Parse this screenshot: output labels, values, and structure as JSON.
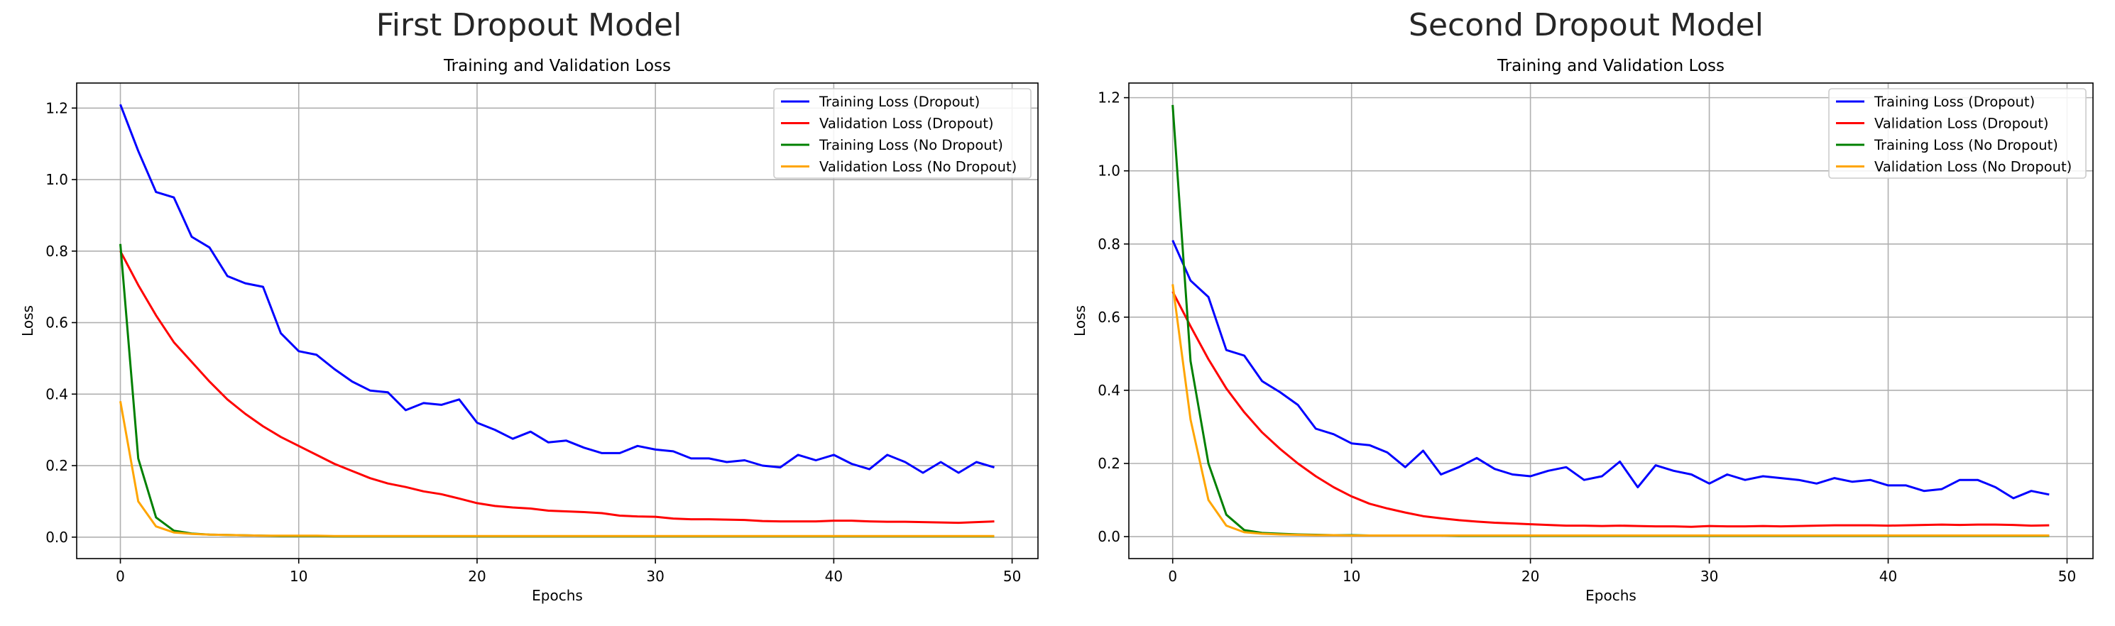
{
  "figure": {
    "titles": [
      "First Dropout Model",
      "Second Dropout Model"
    ]
  },
  "chart_data": [
    {
      "type": "line",
      "title": "Training and Validation Loss",
      "xlabel": "Epochs",
      "ylabel": "Loss",
      "xlim": [
        -2.45,
        51.45
      ],
      "ylim": [
        -0.06,
        1.27
      ],
      "xticks": [
        0,
        10,
        20,
        30,
        40,
        50
      ],
      "yticks": [
        0.0,
        0.2,
        0.4,
        0.6,
        0.8,
        1.0,
        1.2
      ],
      "ytick_labels": [
        "0.0",
        "0.2",
        "0.4",
        "0.6",
        "0.8",
        "1.0",
        "1.2"
      ],
      "grid": true,
      "legend_position": "top-right",
      "x": [
        0,
        1,
        2,
        3,
        4,
        5,
        6,
        7,
        8,
        9,
        10,
        11,
        12,
        13,
        14,
        15,
        16,
        17,
        18,
        19,
        20,
        21,
        22,
        23,
        24,
        25,
        26,
        27,
        28,
        29,
        30,
        31,
        32,
        33,
        34,
        35,
        36,
        37,
        38,
        39,
        40,
        41,
        42,
        43,
        44,
        45,
        46,
        47,
        48,
        49
      ],
      "series": [
        {
          "name": "Training Loss (Dropout)",
          "color": "#0000ff",
          "values": [
            1.21,
            1.08,
            0.965,
            0.95,
            0.84,
            0.81,
            0.73,
            0.71,
            0.7,
            0.57,
            0.52,
            0.51,
            0.47,
            0.435,
            0.41,
            0.405,
            0.355,
            0.375,
            0.37,
            0.385,
            0.32,
            0.3,
            0.275,
            0.295,
            0.265,
            0.27,
            0.25,
            0.235,
            0.235,
            0.255,
            0.245,
            0.24,
            0.22,
            0.22,
            0.21,
            0.215,
            0.2,
            0.195,
            0.23,
            0.215,
            0.23,
            0.205,
            0.19,
            0.23,
            0.21,
            0.18,
            0.21,
            0.18,
            0.21,
            0.195
          ]
        },
        {
          "name": "Validation Loss (Dropout)",
          "color": "#ff0000",
          "values": [
            0.8,
            0.705,
            0.62,
            0.545,
            0.49,
            0.435,
            0.385,
            0.345,
            0.31,
            0.28,
            0.255,
            0.23,
            0.205,
            0.185,
            0.165,
            0.15,
            0.14,
            0.128,
            0.12,
            0.108,
            0.095,
            0.087,
            0.083,
            0.08,
            0.074,
            0.072,
            0.07,
            0.067,
            0.06,
            0.058,
            0.057,
            0.052,
            0.05,
            0.05,
            0.049,
            0.048,
            0.045,
            0.044,
            0.044,
            0.044,
            0.046,
            0.046,
            0.044,
            0.043,
            0.043,
            0.042,
            0.041,
            0.04,
            0.042,
            0.044
          ]
        },
        {
          "name": "Training Loss (No Dropout)",
          "color": "#008000",
          "values": [
            0.82,
            0.22,
            0.055,
            0.018,
            0.01,
            0.007,
            0.006,
            0.005,
            0.004,
            0.003,
            0.003,
            0.003,
            0.002,
            0.002,
            0.002,
            0.002,
            0.002,
            0.002,
            0.002,
            0.002,
            0.002,
            0.002,
            0.002,
            0.002,
            0.002,
            0.002,
            0.002,
            0.002,
            0.002,
            0.002,
            0.002,
            0.002,
            0.002,
            0.002,
            0.002,
            0.002,
            0.002,
            0.002,
            0.002,
            0.002,
            0.002,
            0.002,
            0.002,
            0.002,
            0.002,
            0.002,
            0.002,
            0.002,
            0.002,
            0.002
          ]
        },
        {
          "name": "Validation Loss (No Dropout)",
          "color": "#ffa500",
          "values": [
            0.38,
            0.1,
            0.03,
            0.013,
            0.009,
            0.007,
            0.006,
            0.005,
            0.004,
            0.004,
            0.004,
            0.004,
            0.003,
            0.003,
            0.003,
            0.003,
            0.003,
            0.003,
            0.003,
            0.003,
            0.003,
            0.003,
            0.003,
            0.003,
            0.003,
            0.003,
            0.003,
            0.003,
            0.003,
            0.003,
            0.003,
            0.003,
            0.003,
            0.003,
            0.003,
            0.003,
            0.003,
            0.003,
            0.003,
            0.003,
            0.003,
            0.003,
            0.003,
            0.003,
            0.003,
            0.003,
            0.003,
            0.003,
            0.003,
            0.003
          ]
        }
      ]
    },
    {
      "type": "line",
      "title": "Training and Validation Loss",
      "xlabel": "Epochs",
      "ylabel": "Loss",
      "xlim": [
        -2.45,
        51.45
      ],
      "ylim": [
        -0.06,
        1.24
      ],
      "xticks": [
        0,
        10,
        20,
        30,
        40,
        50
      ],
      "yticks": [
        0.0,
        0.2,
        0.4,
        0.6,
        0.8,
        1.0,
        1.2
      ],
      "ytick_labels": [
        "0.0",
        "0.2",
        "0.4",
        "0.6",
        "0.8",
        "1.0",
        "1.2"
      ],
      "grid": true,
      "legend_position": "top-right",
      "x": [
        0,
        1,
        2,
        3,
        4,
        5,
        6,
        7,
        8,
        9,
        10,
        11,
        12,
        13,
        14,
        15,
        16,
        17,
        18,
        19,
        20,
        21,
        22,
        23,
        24,
        25,
        26,
        27,
        28,
        29,
        30,
        31,
        32,
        33,
        34,
        35,
        36,
        37,
        38,
        39,
        40,
        41,
        42,
        43,
        44,
        45,
        46,
        47,
        48,
        49
      ],
      "series": [
        {
          "name": "Training Loss (Dropout)",
          "color": "#0000ff",
          "values": [
            0.81,
            0.7,
            0.655,
            0.51,
            0.495,
            0.425,
            0.395,
            0.36,
            0.295,
            0.28,
            0.255,
            0.25,
            0.23,
            0.19,
            0.235,
            0.17,
            0.19,
            0.215,
            0.185,
            0.17,
            0.165,
            0.18,
            0.19,
            0.155,
            0.165,
            0.205,
            0.135,
            0.195,
            0.18,
            0.17,
            0.145,
            0.17,
            0.155,
            0.165,
            0.16,
            0.155,
            0.145,
            0.16,
            0.15,
            0.155,
            0.14,
            0.14,
            0.125,
            0.13,
            0.155,
            0.155,
            0.135,
            0.105,
            0.125,
            0.115
          ]
        },
        {
          "name": "Validation Loss (Dropout)",
          "color": "#ff0000",
          "values": [
            0.67,
            0.575,
            0.485,
            0.405,
            0.34,
            0.285,
            0.24,
            0.2,
            0.165,
            0.135,
            0.11,
            0.09,
            0.077,
            0.066,
            0.056,
            0.05,
            0.045,
            0.041,
            0.038,
            0.036,
            0.034,
            0.032,
            0.03,
            0.03,
            0.029,
            0.03,
            0.029,
            0.028,
            0.028,
            0.027,
            0.029,
            0.028,
            0.028,
            0.029,
            0.028,
            0.029,
            0.03,
            0.031,
            0.031,
            0.031,
            0.03,
            0.031,
            0.032,
            0.033,
            0.032,
            0.033,
            0.033,
            0.032,
            0.03,
            0.031
          ]
        },
        {
          "name": "Training Loss (No Dropout)",
          "color": "#008000",
          "values": [
            1.18,
            0.48,
            0.2,
            0.06,
            0.018,
            0.01,
            0.008,
            0.006,
            0.005,
            0.004,
            0.004,
            0.003,
            0.003,
            0.003,
            0.003,
            0.003,
            0.002,
            0.002,
            0.002,
            0.002,
            0.002,
            0.002,
            0.002,
            0.002,
            0.002,
            0.002,
            0.002,
            0.002,
            0.002,
            0.002,
            0.002,
            0.002,
            0.002,
            0.002,
            0.002,
            0.002,
            0.002,
            0.002,
            0.002,
            0.002,
            0.002,
            0.002,
            0.002,
            0.002,
            0.002,
            0.002,
            0.002,
            0.002,
            0.002,
            0.002
          ]
        },
        {
          "name": "Validation Loss (No Dropout)",
          "color": "#ffa500",
          "values": [
            0.69,
            0.32,
            0.1,
            0.03,
            0.012,
            0.008,
            0.006,
            0.005,
            0.004,
            0.004,
            0.003,
            0.003,
            0.003,
            0.003,
            0.003,
            0.003,
            0.003,
            0.003,
            0.003,
            0.003,
            0.003,
            0.003,
            0.003,
            0.003,
            0.003,
            0.003,
            0.003,
            0.003,
            0.003,
            0.003,
            0.003,
            0.003,
            0.003,
            0.003,
            0.003,
            0.003,
            0.003,
            0.003,
            0.003,
            0.003,
            0.003,
            0.003,
            0.003,
            0.003,
            0.003,
            0.003,
            0.003,
            0.003,
            0.003,
            0.003
          ]
        }
      ]
    }
  ]
}
